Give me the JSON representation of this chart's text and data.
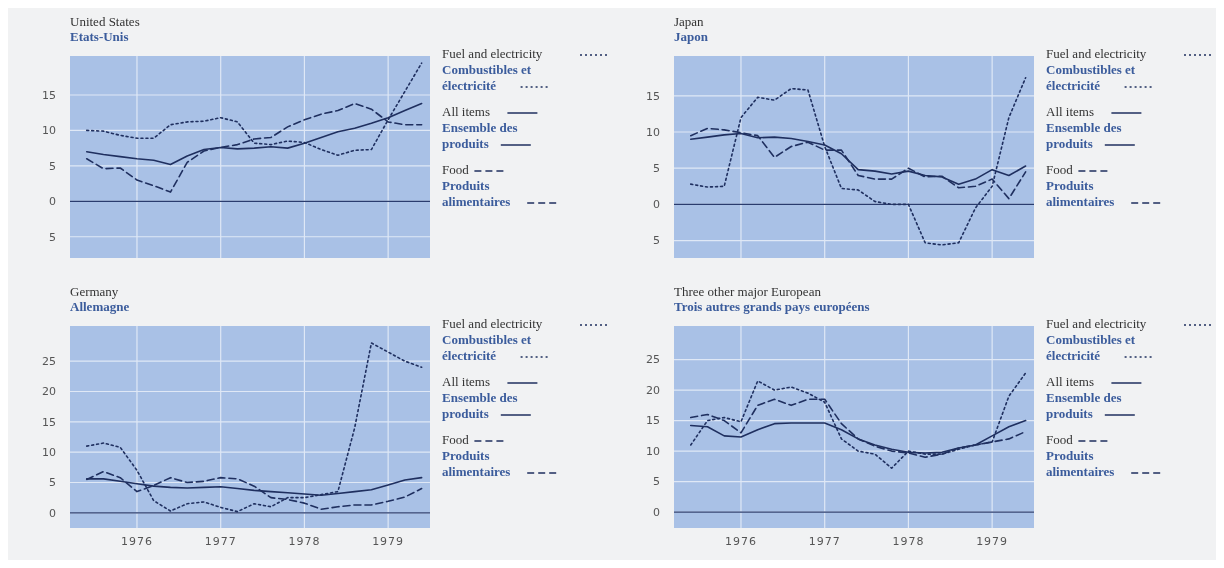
{
  "chart_data": [
    {
      "type": "line",
      "title": "United States\nEtats-Unis",
      "x": [
        1975.4,
        1975.6,
        1975.8,
        1976,
        1976.2,
        1976.4,
        1976.6,
        1976.8,
        1977,
        1977.2,
        1977.4,
        1977.6,
        1977.8,
        1978,
        1978.2,
        1978.4,
        1978.6,
        1978.8,
        1979,
        1979.2,
        1979.4
      ],
      "xlim": [
        1975.2,
        1979.5
      ],
      "xticks": [
        {
          "value": 1976,
          "label": null
        },
        {
          "value": 1977,
          "label": null
        },
        {
          "value": 1978,
          "label": null
        },
        {
          "value": 1979,
          "label": null
        }
      ],
      "ylim": [
        -8,
        20.5
      ],
      "yticks": [
        {
          "value": -5,
          "label": "5"
        },
        0,
        5,
        10,
        15
      ],
      "grid": true,
      "tick_labels": "y",
      "legend": "right",
      "ref_lines": [
        {
          "axis": "y",
          "value": 0,
          "color": "#2a3c6e"
        }
      ],
      "series": [
        {
          "name": "Fuel and electricity\nCombustibles et\nélectricité",
          "color": "#1f2f5f",
          "line_style": "dotted",
          "values": [
            10,
            9.9,
            9.3,
            8.9,
            8.9,
            10.8,
            11.2,
            11.3,
            11.8,
            11.2,
            8.2,
            8.0,
            8.5,
            8.3,
            7.3,
            6.5,
            7.2,
            7.3,
            11.5,
            15.5,
            19.5
          ]
        },
        {
          "name": "All items\nEnsemble des\nproduits",
          "color": "#1f2f5f",
          "line_style": "solid",
          "values": [
            7,
            6.6,
            6.3,
            6.0,
            5.8,
            5.2,
            6.4,
            7.3,
            7.6,
            7.4,
            7.5,
            7.7,
            7.5,
            8.2,
            9.0,
            9.8,
            10.3,
            11.0,
            11.8,
            12.8,
            13.8
          ]
        },
        {
          "name": "Food\nProduits\nalimentaires",
          "color": "#1f2f5f",
          "line_style": "dashed",
          "values": [
            6,
            4.6,
            4.7,
            3.0,
            2.2,
            1.3,
            5.5,
            7.1,
            7.6,
            8.0,
            8.8,
            9.0,
            10.5,
            11.5,
            12.3,
            12.8,
            13.8,
            13.0,
            11.2,
            10.8,
            10.8
          ]
        }
      ]
    },
    {
      "type": "line",
      "title": "Japan\nJapon",
      "x": [
        1975.4,
        1975.6,
        1975.8,
        1976,
        1976.2,
        1976.4,
        1976.6,
        1976.8,
        1977,
        1977.2,
        1977.4,
        1977.6,
        1977.8,
        1978,
        1978.2,
        1978.4,
        1978.6,
        1978.8,
        1979,
        1979.2,
        1979.4
      ],
      "xlim": [
        1975.2,
        1979.5
      ],
      "xticks": [
        {
          "value": 1976,
          "label": null
        },
        {
          "value": 1977,
          "label": null
        },
        {
          "value": 1978,
          "label": null
        },
        {
          "value": 1979,
          "label": null
        }
      ],
      "ylim": [
        -7.4,
        20.5
      ],
      "yticks": [
        {
          "value": -5,
          "label": "5"
        },
        0,
        5,
        10,
        15
      ],
      "grid": true,
      "tick_labels": "y",
      "legend": "right",
      "ref_lines": [
        {
          "axis": "y",
          "value": 0,
          "color": "#2a3c6e"
        }
      ],
      "series": [
        {
          "name": "Fuel and electricity\nCombustibles et\nélectricité",
          "color": "#1f2f5f",
          "line_style": "dotted",
          "values": [
            2.8,
            2.4,
            2.5,
            12,
            14.8,
            14.4,
            16,
            15.8,
            8,
            2.2,
            2.0,
            0.4,
            0,
            0,
            -5.3,
            -5.6,
            -5.3,
            -0.5,
            2.5,
            12,
            17.5
          ]
        },
        {
          "name": "All items\nEnsemble des\nproduits",
          "color": "#1f2f5f",
          "line_style": "solid",
          "values": [
            9,
            9.3,
            9.6,
            9.8,
            9.2,
            9.3,
            9.1,
            8.7,
            8.2,
            7.0,
            4.8,
            4.6,
            4.2,
            4.6,
            4.0,
            3.8,
            2.8,
            3.5,
            4.8,
            4.0,
            5.3
          ]
        },
        {
          "name": "Food\nProduits\nalimentaires",
          "color": "#1f2f5f",
          "line_style": "dashed",
          "values": [
            9.5,
            10.5,
            10.3,
            9.9,
            9.5,
            6.5,
            8.0,
            8.6,
            7.5,
            7.5,
            4.0,
            3.5,
            3.5,
            5.0,
            3.8,
            3.9,
            2.3,
            2.5,
            3.5,
            0.8,
            4.5
          ]
        }
      ]
    },
    {
      "type": "line",
      "title": "Germany\nAllemagne",
      "x": [
        1975.4,
        1975.6,
        1975.8,
        1976,
        1976.2,
        1976.4,
        1976.6,
        1976.8,
        1977,
        1977.2,
        1977.4,
        1977.6,
        1977.8,
        1978,
        1978.2,
        1978.4,
        1978.6,
        1978.8,
        1979,
        1979.2,
        1979.4
      ],
      "xlim": [
        1975.2,
        1979.5
      ],
      "xticks": [
        1976,
        1977,
        1978,
        1979
      ],
      "ylim": [
        -2.5,
        30.8
      ],
      "yticks": [
        0,
        5,
        10,
        15,
        20,
        25
      ],
      "grid": true,
      "legend": "right",
      "ref_lines": [
        {
          "axis": "y",
          "value": 0,
          "color": "#2a3c6e"
        }
      ],
      "series": [
        {
          "name": "Fuel and electricity\nCombustibles et\nélectricité",
          "color": "#1f2f5f",
          "line_style": "dotted",
          "values": [
            11,
            11.5,
            10.8,
            7.0,
            2.0,
            0.3,
            1.5,
            1.8,
            0.9,
            0.2,
            1.5,
            1.0,
            2.5,
            2.5,
            3.0,
            3.5,
            14,
            28,
            26.5,
            25,
            24
          ]
        },
        {
          "name": "All items\nEnsemble des\nproduits",
          "color": "#1f2f5f",
          "line_style": "solid",
          "values": [
            5.6,
            5.6,
            5.2,
            4.8,
            4.4,
            4.2,
            4.1,
            4.2,
            4.3,
            4.0,
            3.7,
            3.5,
            3.3,
            3.1,
            2.9,
            3.2,
            3.5,
            3.8,
            4.6,
            5.4,
            5.8
          ]
        },
        {
          "name": "Food\nProduits\nalimentaires",
          "color": "#1f2f5f",
          "line_style": "dashed",
          "values": [
            5.5,
            6.8,
            5.8,
            3.5,
            4.5,
            5.8,
            5.0,
            5.2,
            5.8,
            5.6,
            4.4,
            2.5,
            2.2,
            1.6,
            0.6,
            1.0,
            1.3,
            1.3,
            1.9,
            2.6,
            4.0
          ]
        }
      ]
    },
    {
      "type": "line",
      "title": "Three other major European\nTrois autres grands pays européens",
      "x": [
        1975.4,
        1975.6,
        1975.8,
        1976,
        1976.2,
        1976.4,
        1976.6,
        1976.8,
        1977,
        1977.2,
        1977.4,
        1977.6,
        1977.8,
        1978,
        1978.2,
        1978.4,
        1978.6,
        1978.8,
        1979,
        1979.2,
        1979.4
      ],
      "xlim": [
        1975.2,
        1979.5
      ],
      "xticks": [
        1976,
        1977,
        1978,
        1979
      ],
      "ylim": [
        -2.6,
        30.5
      ],
      "yticks": [
        0,
        5,
        10,
        15,
        20,
        25
      ],
      "grid": true,
      "legend": "right",
      "ref_lines": [
        {
          "axis": "y",
          "value": 0,
          "color": "#2a3c6e"
        }
      ],
      "series": [
        {
          "name": "Fuel and electricity\nCombustibles et\nélectricité",
          "color": "#1f2f5f",
          "line_style": "dotted",
          "values": [
            11,
            15,
            15.5,
            14.8,
            21.5,
            20,
            20.5,
            19.5,
            18,
            12,
            10,
            9.5,
            7.2,
            10,
            9.5,
            9.5,
            10.3,
            11,
            11.5,
            19,
            22.8
          ]
        },
        {
          "name": "All items\nEnsemble des\nproduits",
          "color": "#1f2f5f",
          "line_style": "solid",
          "values": [
            14.2,
            14.0,
            12.5,
            12.3,
            13.5,
            14.5,
            14.6,
            14.6,
            14.6,
            13.5,
            12.0,
            11.0,
            10.3,
            9.8,
            9.7,
            9.8,
            10.5,
            11.0,
            12.5,
            14,
            15
          ]
        },
        {
          "name": "Food\nProduits\nalimentaires",
          "color": "#1f2f5f",
          "line_style": "dashed",
          "values": [
            15.5,
            16,
            15,
            13,
            17.5,
            18.5,
            17.5,
            18.5,
            18.5,
            14.5,
            12,
            10.8,
            10.0,
            9.7,
            9.0,
            9.5,
            10.5,
            11.0,
            11.5,
            12,
            13.2
          ]
        }
      ]
    }
  ]
}
